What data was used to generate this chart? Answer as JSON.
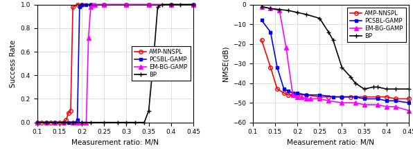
{
  "left": {
    "xlabel": "Measurement ratio: M/N",
    "ylabel": "Success Rate",
    "xlim": [
      0.1,
      0.45
    ],
    "ylim": [
      0,
      1.0
    ],
    "xticks": [
      0.1,
      0.15,
      0.2,
      0.25,
      0.3,
      0.35,
      0.4,
      0.45
    ],
    "yticks": [
      0,
      0.2,
      0.4,
      0.6,
      0.8,
      1.0
    ],
    "series": {
      "AMP-NNSPL": {
        "x": [
          0.1,
          0.11,
          0.12,
          0.13,
          0.14,
          0.15,
          0.16,
          0.165,
          0.17,
          0.175,
          0.18,
          0.19,
          0.2,
          0.22,
          0.25,
          0.3,
          0.35,
          0.4,
          0.45
        ],
        "y": [
          0.0,
          0.0,
          0.0,
          0.0,
          0.0,
          0.0,
          0.0,
          0.02,
          0.08,
          0.1,
          0.98,
          1.0,
          1.0,
          1.0,
          1.0,
          1.0,
          1.0,
          1.0,
          1.0
        ],
        "color": "red",
        "marker": "o",
        "markerfacecolor": "none"
      },
      "PCSBL-GAMP": {
        "x": [
          0.1,
          0.12,
          0.14,
          0.16,
          0.17,
          0.18,
          0.185,
          0.19,
          0.195,
          0.2,
          0.21,
          0.22,
          0.25,
          0.3,
          0.35,
          0.4,
          0.45
        ],
        "y": [
          0.0,
          0.0,
          0.0,
          0.0,
          0.0,
          0.0,
          0.0,
          0.02,
          0.98,
          1.0,
          1.0,
          1.0,
          1.0,
          1.0,
          1.0,
          1.0,
          1.0
        ],
        "color": "blue",
        "marker": "s",
        "markerfacecolor": "blue"
      },
      "EM-BG-GAMP": {
        "x": [
          0.1,
          0.12,
          0.14,
          0.16,
          0.18,
          0.19,
          0.2,
          0.21,
          0.215,
          0.22,
          0.225,
          0.23,
          0.25,
          0.3,
          0.35,
          0.4,
          0.45
        ],
        "y": [
          0.0,
          0.0,
          0.0,
          0.0,
          0.0,
          0.0,
          0.0,
          0.0,
          0.72,
          0.98,
          1.0,
          1.0,
          1.0,
          1.0,
          1.0,
          1.0,
          1.0
        ],
        "color": "#ff00ff",
        "marker": "^",
        "markerfacecolor": "#ff00ff"
      },
      "BP": {
        "x": [
          0.1,
          0.12,
          0.14,
          0.16,
          0.18,
          0.2,
          0.22,
          0.25,
          0.28,
          0.3,
          0.32,
          0.34,
          0.35,
          0.36,
          0.37,
          0.38,
          0.4,
          0.42,
          0.45
        ],
        "y": [
          0.0,
          0.0,
          0.0,
          0.0,
          0.0,
          0.0,
          0.0,
          0.0,
          0.0,
          0.0,
          0.0,
          0.0,
          0.1,
          0.5,
          0.98,
          1.0,
          1.0,
          1.0,
          1.0
        ],
        "color": "black",
        "marker": "+",
        "markerfacecolor": "black"
      }
    },
    "legend_loc": "center right"
  },
  "right": {
    "xlabel": "Measurement ratio: M/N",
    "ylabel": "NMSE(dB)",
    "xlim": [
      0.1,
      0.45
    ],
    "ylim": [
      -60,
      0
    ],
    "xticks": [
      0.1,
      0.15,
      0.2,
      0.25,
      0.3,
      0.35,
      0.4,
      0.45
    ],
    "yticks": [
      -60,
      -50,
      -40,
      -30,
      -20,
      -10,
      0
    ],
    "series": {
      "AMP-NNSPL": {
        "x": [
          0.12,
          0.14,
          0.155,
          0.17,
          0.18,
          0.19,
          0.2,
          0.22,
          0.25,
          0.27,
          0.3,
          0.32,
          0.35,
          0.38,
          0.4,
          0.42,
          0.45
        ],
        "y": [
          -18,
          -32,
          -43,
          -45,
          -46,
          -46,
          -46,
          -46,
          -47,
          -47,
          -47,
          -47,
          -47,
          -47,
          -47,
          -48,
          -48
        ],
        "color": "red",
        "marker": "o",
        "markerfacecolor": "none"
      },
      "PCSBL-GAMP": {
        "x": [
          0.12,
          0.14,
          0.155,
          0.17,
          0.18,
          0.19,
          0.2,
          0.22,
          0.25,
          0.28,
          0.3,
          0.33,
          0.35,
          0.38,
          0.4,
          0.42,
          0.45
        ],
        "y": [
          -8,
          -14,
          -32,
          -43,
          -44,
          -45,
          -45,
          -46,
          -46,
          -47,
          -47,
          -47,
          -48,
          -48,
          -49,
          -49,
          -50
        ],
        "color": "blue",
        "marker": "s",
        "markerfacecolor": "blue"
      },
      "EM-BG-GAMP": {
        "x": [
          0.12,
          0.14,
          0.16,
          0.175,
          0.19,
          0.2,
          0.21,
          0.22,
          0.23,
          0.25,
          0.27,
          0.3,
          0.33,
          0.35,
          0.38,
          0.4,
          0.42,
          0.45
        ],
        "y": [
          -1,
          -2,
          -3,
          -22,
          -46,
          -47,
          -47,
          -48,
          -48,
          -48,
          -49,
          -50,
          -50,
          -51,
          -51,
          -52,
          -52,
          -54
        ],
        "color": "#ff00ff",
        "marker": "^",
        "markerfacecolor": "#ff00ff"
      },
      "BP": {
        "x": [
          0.12,
          0.14,
          0.16,
          0.18,
          0.2,
          0.22,
          0.25,
          0.27,
          0.28,
          0.3,
          0.32,
          0.33,
          0.35,
          0.37,
          0.38,
          0.4,
          0.42,
          0.45
        ],
        "y": [
          -1,
          -2,
          -2.5,
          -3,
          -4,
          -5,
          -7,
          -14,
          -18,
          -32,
          -37,
          -40,
          -43,
          -42,
          -42,
          -43,
          -43,
          -43
        ],
        "color": "black",
        "marker": "+",
        "markerfacecolor": "black"
      }
    },
    "legend_loc": "upper right"
  },
  "fig_width": 5.96,
  "fig_height": 2.22,
  "dpi": 100
}
